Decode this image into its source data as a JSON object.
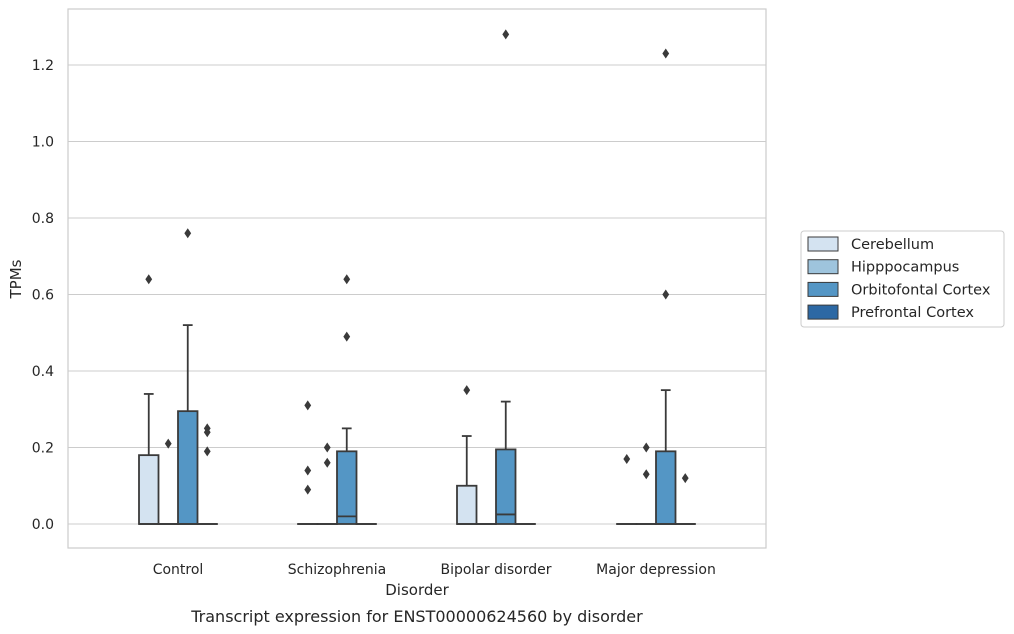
{
  "chart_data": {
    "type": "box",
    "title": "",
    "caption": "Transcript expression for ENST00000624560 by disorder",
    "xlabel": "Disorder",
    "ylabel": "TPMs",
    "ylim": [
      -0.065,
      1.35
    ],
    "yticks": [
      0.0,
      0.2,
      0.4,
      0.6,
      0.8,
      1.0,
      1.2
    ],
    "ytick_labels": [
      "0.0",
      "0.2",
      "0.4",
      "0.6",
      "0.8",
      "1.0",
      "1.2"
    ],
    "grid": "horizontal",
    "legend_position": "right",
    "categories": [
      "Control",
      "Schizophrenia",
      "Bipolar disorder",
      "Major depression"
    ],
    "series": [
      {
        "name": "Cerebellum",
        "color": "#d4e3f1",
        "boxes": [
          {
            "q1": 0,
            "median": 0,
            "q3": 0.18,
            "whisker_low": 0,
            "whisker_high": 0.34,
            "outliers": [
              0.64
            ]
          },
          {
            "q1": 0,
            "median": 0,
            "q3": 0,
            "whisker_low": 0,
            "whisker_high": 0,
            "outliers": [
              0.31,
              0.14,
              0.09
            ]
          },
          {
            "q1": 0,
            "median": 0,
            "q3": 0.1,
            "whisker_low": 0,
            "whisker_high": 0.23,
            "outliers": [
              0.35
            ]
          },
          {
            "q1": 0,
            "median": 0,
            "q3": 0,
            "whisker_low": 0,
            "whisker_high": 0,
            "outliers": [
              0.17
            ]
          }
        ]
      },
      {
        "name": "Hipppocampus",
        "color": "#9ec4dd",
        "boxes": [
          {
            "q1": 0,
            "median": 0,
            "q3": 0,
            "whisker_low": 0,
            "whisker_high": 0,
            "outliers": [
              0.21
            ]
          },
          {
            "q1": 0,
            "median": 0,
            "q3": 0,
            "whisker_low": 0,
            "whisker_high": 0,
            "outliers": [
              0.2,
              0.16
            ]
          },
          {
            "q1": 0,
            "median": 0,
            "q3": 0,
            "whisker_low": 0,
            "whisker_high": 0,
            "outliers": []
          },
          {
            "q1": 0,
            "median": 0,
            "q3": 0,
            "whisker_low": 0,
            "whisker_high": 0,
            "outliers": [
              0.2,
              0.13
            ]
          }
        ]
      },
      {
        "name": "Orbitofontal Cortex",
        "color": "#5496c5",
        "boxes": [
          {
            "q1": 0,
            "median": 0,
            "q3": 0.295,
            "whisker_low": 0,
            "whisker_high": 0.52,
            "outliers": [
              0.76
            ]
          },
          {
            "q1": 0,
            "median": 0.02,
            "q3": 0.19,
            "whisker_low": 0,
            "whisker_high": 0.25,
            "outliers": [
              0.64,
              0.49
            ]
          },
          {
            "q1": 0,
            "median": 0.025,
            "q3": 0.195,
            "whisker_low": 0,
            "whisker_high": 0.32,
            "outliers": [
              1.28
            ]
          },
          {
            "q1": 0,
            "median": 0,
            "q3": 0.19,
            "whisker_low": 0,
            "whisker_high": 0.35,
            "outliers": [
              1.23,
              0.6
            ]
          }
        ]
      },
      {
        "name": "Prefrontal Cortex",
        "color": "#2c68a4",
        "boxes": [
          {
            "q1": 0,
            "median": 0,
            "q3": 0,
            "whisker_low": 0,
            "whisker_high": 0,
            "outliers": [
              0.25,
              0.24,
              0.19
            ]
          },
          {
            "q1": 0,
            "median": 0,
            "q3": 0,
            "whisker_low": 0,
            "whisker_high": 0,
            "outliers": []
          },
          {
            "q1": 0,
            "median": 0,
            "q3": 0,
            "whisker_low": 0,
            "whisker_high": 0,
            "outliers": []
          },
          {
            "q1": 0,
            "median": 0,
            "q3": 0,
            "whisker_low": 0,
            "whisker_high": 0,
            "outliers": [
              0.12
            ]
          }
        ]
      }
    ]
  }
}
